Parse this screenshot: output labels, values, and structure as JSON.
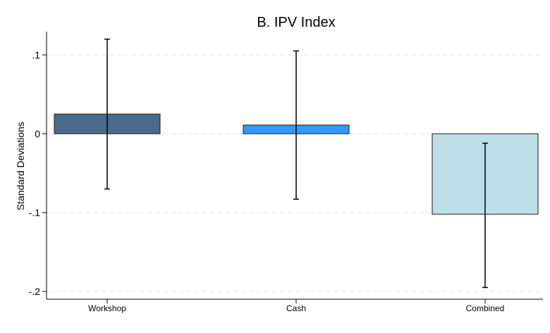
{
  "chart_data": {
    "type": "bar",
    "title": "B. IPV Index",
    "xlabel": "",
    "ylabel": "Standard Deviations",
    "categories": [
      "Workshop",
      "Cash",
      "Combined"
    ],
    "values": [
      0.025,
      0.011,
      -0.102
    ],
    "ci_low": [
      -0.07,
      -0.083,
      -0.195
    ],
    "ci_high": [
      0.12,
      0.105,
      -0.012
    ],
    "colors": [
      "#4a6a8a",
      "#3399ff",
      "#bddfe8"
    ],
    "ylim": [
      -0.2,
      0.1
    ],
    "y_ticks": [
      {
        "value": 0.1,
        "label": ".1"
      },
      {
        "value": 0,
        "label": "0"
      },
      {
        "value": -0.1,
        "label": "-.1"
      },
      {
        "value": -0.2,
        "label": "-.2"
      }
    ],
    "grid": true,
    "legend": "none"
  }
}
